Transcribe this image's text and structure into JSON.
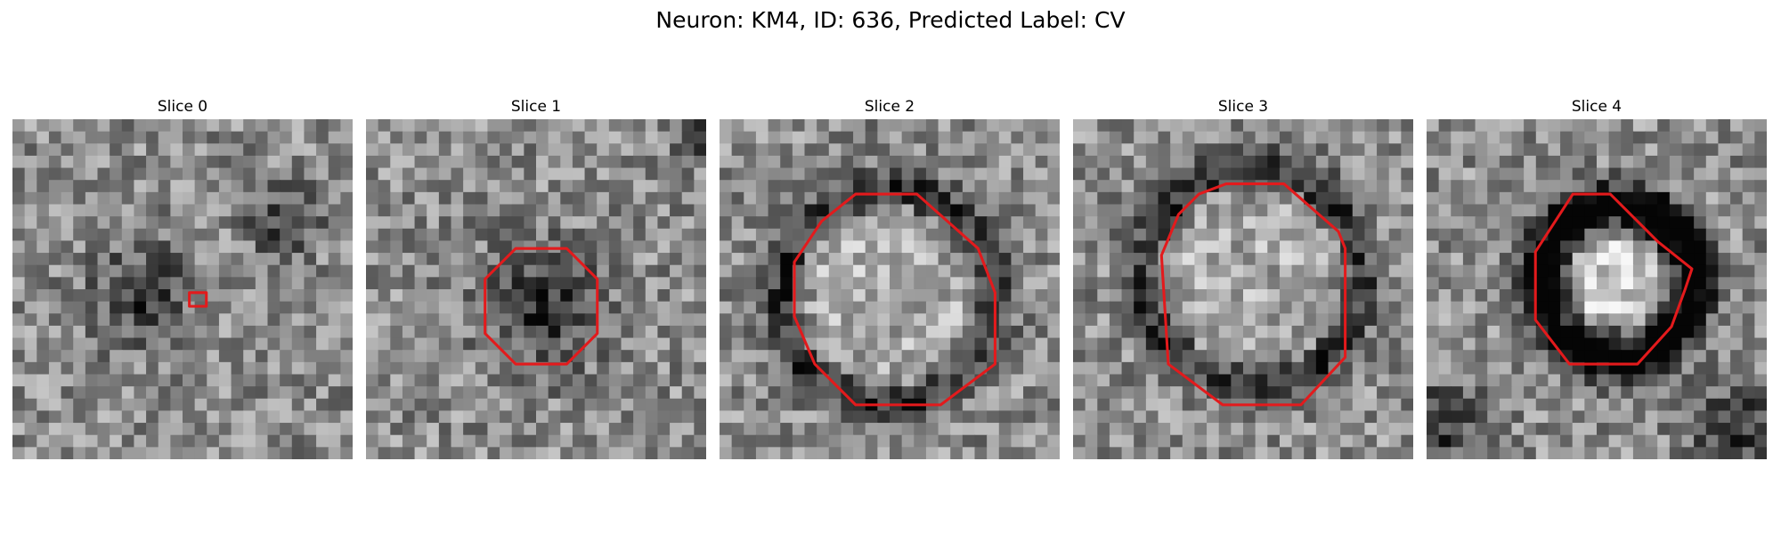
{
  "figure": {
    "title": "Neuron: KM4, ID: 636, Predicted Label: CV"
  },
  "colors": {
    "contour": "#e31a1c"
  },
  "slices": [
    {
      "title": "Slice 0",
      "contour": [
        [
          0.52,
          0.51
        ],
        [
          0.57,
          0.51
        ],
        [
          0.57,
          0.55
        ],
        [
          0.52,
          0.55
        ]
      ],
      "dark_blobs": [
        [
          0.38,
          0.52,
          0.14
        ],
        [
          0.8,
          0.3,
          0.1
        ]
      ]
    },
    {
      "title": "Slice 1",
      "contour": [
        [
          0.44,
          0.38
        ],
        [
          0.59,
          0.38
        ],
        [
          0.68,
          0.47
        ],
        [
          0.68,
          0.63
        ],
        [
          0.59,
          0.72
        ],
        [
          0.44,
          0.72
        ],
        [
          0.35,
          0.63
        ],
        [
          0.35,
          0.47
        ]
      ],
      "dark_blobs": [
        [
          0.52,
          0.55,
          0.18
        ],
        [
          0.97,
          0.05,
          0.06
        ]
      ]
    },
    {
      "title": "Slice 2",
      "contour": [
        [
          0.4,
          0.22
        ],
        [
          0.58,
          0.22
        ],
        [
          0.76,
          0.38
        ],
        [
          0.81,
          0.51
        ],
        [
          0.81,
          0.72
        ],
        [
          0.65,
          0.84
        ],
        [
          0.4,
          0.84
        ],
        [
          0.28,
          0.72
        ],
        [
          0.22,
          0.58
        ],
        [
          0.22,
          0.42
        ],
        [
          0.3,
          0.3
        ]
      ],
      "dark_blobs": [
        [
          0.52,
          0.53,
          0.0
        ]
      ]
    },
    {
      "title": "Slice 3",
      "contour": [
        [
          0.45,
          0.19
        ],
        [
          0.62,
          0.19
        ],
        [
          0.78,
          0.33
        ],
        [
          0.8,
          0.38
        ],
        [
          0.8,
          0.7
        ],
        [
          0.67,
          0.84
        ],
        [
          0.44,
          0.84
        ],
        [
          0.28,
          0.72
        ],
        [
          0.26,
          0.4
        ],
        [
          0.31,
          0.28
        ],
        [
          0.37,
          0.22
        ]
      ],
      "dark_blobs": [
        [
          0.53,
          0.48,
          0.0
        ]
      ]
    },
    {
      "title": "Slice 4",
      "contour": [
        [
          0.43,
          0.22
        ],
        [
          0.54,
          0.22
        ],
        [
          0.68,
          0.36
        ],
        [
          0.78,
          0.44
        ],
        [
          0.76,
          0.5
        ],
        [
          0.72,
          0.61
        ],
        [
          0.62,
          0.72
        ],
        [
          0.42,
          0.72
        ],
        [
          0.32,
          0.59
        ],
        [
          0.32,
          0.39
        ]
      ],
      "dark_blobs": [
        [
          0.04,
          0.9,
          0.12
        ],
        [
          0.9,
          0.9,
          0.12
        ]
      ]
    }
  ]
}
